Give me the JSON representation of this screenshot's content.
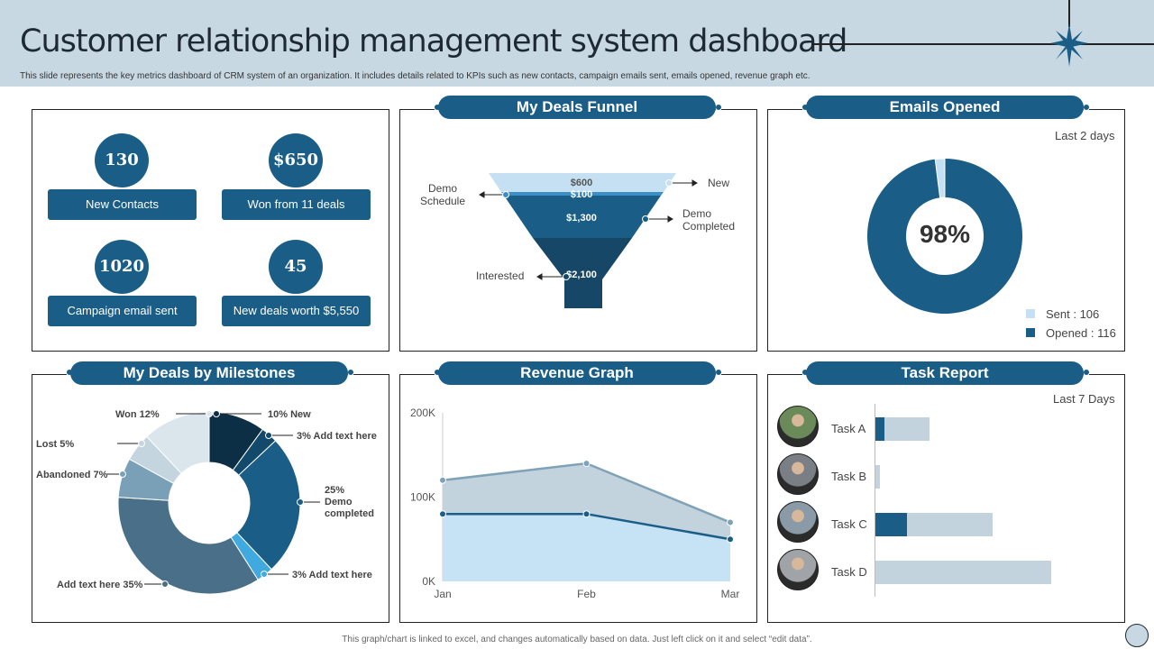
{
  "header": {
    "title": "Customer relationship management system dashboard",
    "subtitle": "This slide represents the key metrics dashboard of CRM  system of an organization. It includes details related to KPIs  such as new contacts, campaign emails sent, emails opened, revenue graph etc."
  },
  "kpis": [
    {
      "value": "130",
      "label": "New Contacts"
    },
    {
      "value": "$650",
      "label": "Won from 11 deals"
    },
    {
      "value": "1020",
      "label": "Campaign email sent"
    },
    {
      "value": "45",
      "label": "New deals worth $5,550"
    }
  ],
  "funnel": {
    "title": "My Deals Funnel",
    "stages": [
      {
        "value": "$600",
        "label": "New",
        "color": "#c5e0f2"
      },
      {
        "value": "$100",
        "label": "Demo Schedule",
        "color": "#3a8fc8"
      },
      {
        "value": "$1,300",
        "label": "Demo Completed",
        "color": "#1a5e87"
      },
      {
        "value": "$2,100",
        "label": "Interested",
        "color": "#174766"
      }
    ]
  },
  "emails": {
    "title": "Emails Opened",
    "period": "Last 2 days",
    "center": "98%",
    "opened_pct": 98,
    "legend": [
      {
        "label": "Sent : 106",
        "color": "#c5e0f2"
      },
      {
        "label": "Opened  : 116",
        "color": "#1a5e87"
      }
    ]
  },
  "milestones": {
    "title": "My Deals by Milestones",
    "slices": [
      {
        "label": "10% New",
        "pct": 10,
        "color": "#0d2f45"
      },
      {
        "label": "3% Add text here",
        "pct": 3,
        "color": "#134a6b"
      },
      {
        "label": "25% Demo completed",
        "pct": 25,
        "color": "#1a5e87"
      },
      {
        "label": "3% Add text here",
        "pct": 3,
        "color": "#3fa9e0"
      },
      {
        "label": "Add text here 35%",
        "pct": 35,
        "color": "#4a6f88"
      },
      {
        "label": "Abandoned 7%",
        "pct": 7,
        "color": "#7aa0b8"
      },
      {
        "label": "Lost 5%",
        "pct": 5,
        "color": "#c4d5df"
      },
      {
        "label": "Won 12%",
        "pct": 12,
        "color": "#dbe5ec"
      }
    ]
  },
  "revenue": {
    "title": "Revenue Graph",
    "x": [
      "Jan",
      "Feb",
      "Mar"
    ],
    "yticks": [
      "200K",
      "100K",
      "0K"
    ],
    "ylim": [
      0,
      200000
    ],
    "series": [
      {
        "values": [
          120000,
          140000,
          70000
        ],
        "color": "#c3d3de",
        "line": "#7fa2b8"
      },
      {
        "values": [
          80000,
          80000,
          50000
        ],
        "color": "#c5e3f5",
        "line": "#1a5e87"
      }
    ]
  },
  "tasks": {
    "title": "Task Report",
    "period": "Last 7 Days",
    "items": [
      {
        "label": "Task A",
        "completed": 2,
        "total": 12
      },
      {
        "label": "Task B",
        "completed": 0,
        "total": 1
      },
      {
        "label": "Task C",
        "completed": 7,
        "total": 26
      },
      {
        "label": "Task D",
        "completed": 0,
        "total": 39
      }
    ]
  },
  "footer": "This graph/chart is linked to excel, and changes automatically based on data. Just left click on it and select “edit data”."
}
